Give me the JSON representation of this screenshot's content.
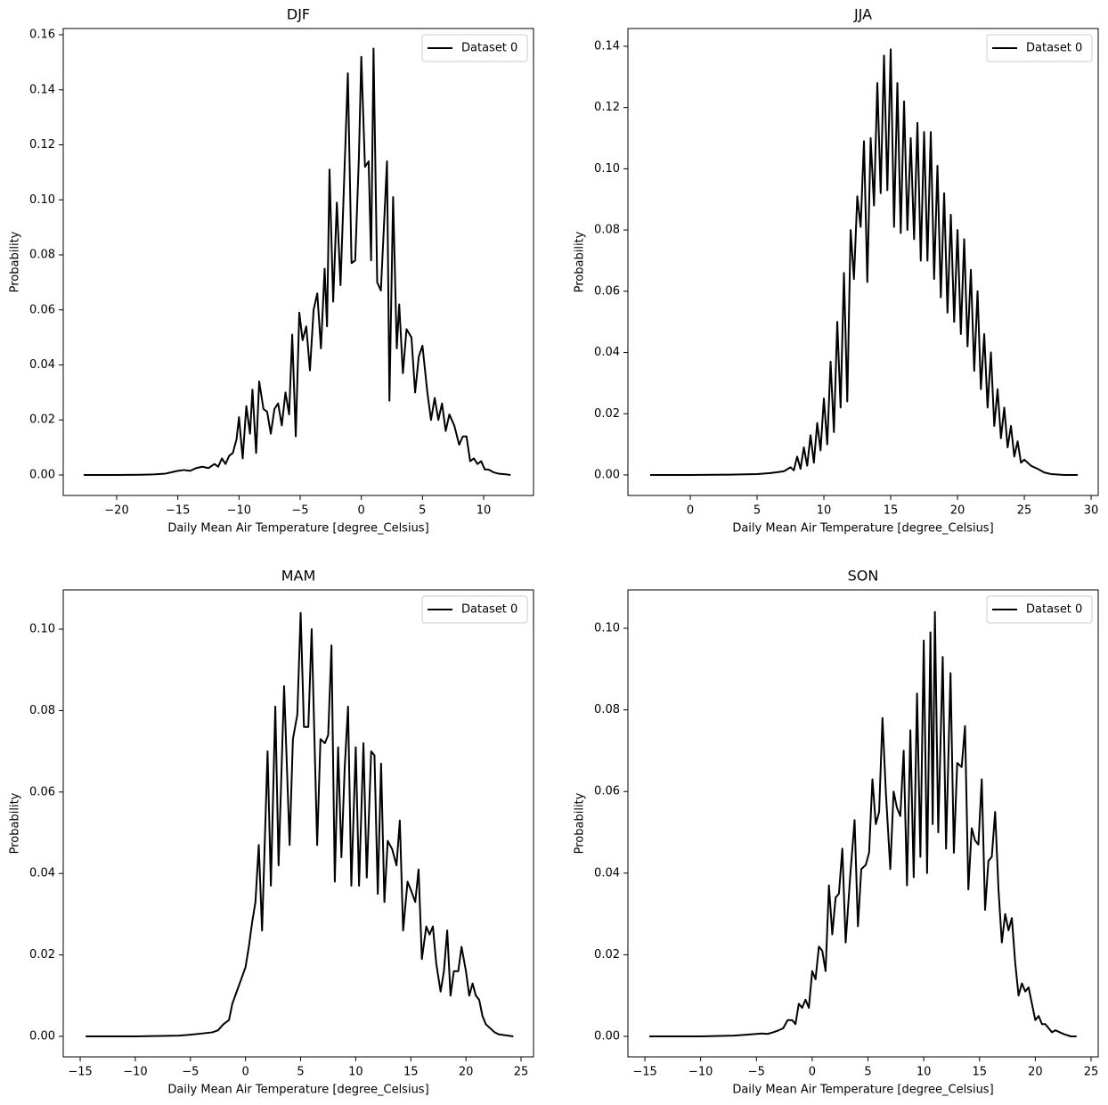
{
  "chart_data": [
    {
      "type": "line",
      "title": "DJF",
      "xlabel": "Daily Mean Air Temperature [degree_Celsius]",
      "ylabel": "Probability",
      "legend": "upper right",
      "x": [
        -22.7,
        -20,
        -18,
        -17,
        -16,
        -15.5,
        -15,
        -14.5,
        -14,
        -13.5,
        -13,
        -12.5,
        -12,
        -11.7,
        -11.4,
        -11.1,
        -10.8,
        -10.5,
        -10.2,
        -10.0,
        -9.7,
        -9.4,
        -9.1,
        -8.9,
        -8.6,
        -8.35,
        -8.0,
        -7.7,
        -7.4,
        -7.1,
        -6.8,
        -6.5,
        -6.2,
        -5.9,
        -5.65,
        -5.36,
        -5.07,
        -4.8,
        -4.5,
        -4.2,
        -3.9,
        -3.6,
        -3.3,
        -3.0,
        -2.8,
        -2.6,
        -2.3,
        -2.0,
        -1.7,
        -1.1,
        -0.8,
        -0.5,
        -0.2,
        0.0,
        0.3,
        0.6,
        0.8,
        1.0,
        1.3,
        1.6,
        1.9,
        2.1,
        2.3,
        2.6,
        2.9,
        3.1,
        3.4,
        3.7,
        4.1,
        4.4,
        4.7,
        5.0,
        5.4,
        5.7,
        6.0,
        6.3,
        6.6,
        6.9,
        7.2,
        7.6,
        8.0,
        8.3,
        8.6,
        8.9,
        9.2,
        9.5,
        9.8,
        10.1,
        10.4,
        10.8,
        11.2,
        11.7,
        12.2
      ],
      "series": [
        {
          "name": "Dataset 0",
          "color": "#000000",
          "values": [
            0,
            0,
            0.0001,
            0.0002,
            0.0005,
            0.001,
            0.0015,
            0.0018,
            0.0015,
            0.0025,
            0.003,
            0.0025,
            0.004,
            0.003,
            0.006,
            0.004,
            0.007,
            0.008,
            0.013,
            0.021,
            0.006,
            0.025,
            0.015,
            0.031,
            0.008,
            0.034,
            0.024,
            0.023,
            0.015,
            0.024,
            0.026,
            0.018,
            0.03,
            0.022,
            0.051,
            0.014,
            0.059,
            0.049,
            0.054,
            0.038,
            0.06,
            0.066,
            0.046,
            0.075,
            0.054,
            0.111,
            0.063,
            0.099,
            0.069,
            0.146,
            0.077,
            0.078,
            0.115,
            0.152,
            0.112,
            0.114,
            0.078,
            0.155,
            0.07,
            0.067,
            0.095,
            0.114,
            0.027,
            0.101,
            0.046,
            0.062,
            0.037,
            0.053,
            0.05,
            0.03,
            0.043,
            0.047,
            0.03,
            0.02,
            0.028,
            0.02,
            0.026,
            0.016,
            0.022,
            0.018,
            0.011,
            0.014,
            0.014,
            0.005,
            0.006,
            0.004,
            0.005,
            0.002,
            0.002,
            0.001,
            0.0005,
            0.0003,
            0
          ]
        }
      ],
      "xlim": [
        -24.37,
        14.08
      ],
      "ylim": [
        -0.00745,
        0.16227
      ],
      "xticks": [
        {
          "value": -20,
          "label": "−20"
        },
        {
          "value": -15,
          "label": "−15"
        },
        {
          "value": -10,
          "label": "−10"
        },
        {
          "value": -5,
          "label": "−5"
        },
        0,
        5,
        10
      ],
      "yticks": [
        {
          "value": 0,
          "label": "0.00"
        },
        0.02,
        0.04,
        0.06,
        0.08,
        {
          "value": 0.1,
          "label": "0.10"
        },
        0.12,
        0.14,
        0.16
      ]
    },
    {
      "type": "line",
      "title": "JJA",
      "xlabel": "Daily Mean Air Temperature [degree_Celsius]",
      "ylabel": "Probability",
      "legend": "upper right",
      "x": [
        -3,
        0,
        3,
        5,
        6,
        7,
        7.5,
        7.75,
        8.0,
        8.25,
        8.5,
        8.75,
        9.0,
        9.25,
        9.5,
        9.75,
        10.0,
        10.25,
        10.5,
        10.75,
        11.0,
        11.25,
        11.5,
        11.75,
        12.0,
        12.25,
        12.5,
        12.75,
        13.0,
        13.25,
        13.5,
        13.75,
        14.0,
        14.25,
        14.5,
        14.75,
        15.0,
        15.25,
        15.5,
        15.75,
        16.0,
        16.25,
        16.5,
        16.75,
        17.0,
        17.25,
        17.5,
        17.75,
        18.0,
        18.25,
        18.5,
        18.75,
        19.0,
        19.25,
        19.5,
        19.75,
        20.0,
        20.25,
        20.5,
        20.75,
        21.0,
        21.25,
        21.5,
        21.75,
        22.0,
        22.25,
        22.5,
        22.75,
        23.0,
        23.25,
        23.5,
        23.75,
        24.0,
        24.25,
        24.5,
        24.75,
        25,
        25.5,
        26,
        26.5,
        27,
        28,
        29
      ],
      "series": [
        {
          "name": "Dataset 0",
          "color": "#000000",
          "values": [
            0,
            0,
            0.0001,
            0.0003,
            0.0006,
            0.0012,
            0.0025,
            0.0015,
            0.006,
            0.002,
            0.009,
            0.003,
            0.013,
            0.004,
            0.017,
            0.008,
            0.025,
            0.01,
            0.037,
            0.014,
            0.05,
            0.022,
            0.066,
            0.024,
            0.08,
            0.064,
            0.091,
            0.081,
            0.109,
            0.063,
            0.11,
            0.088,
            0.128,
            0.092,
            0.137,
            0.093,
            0.139,
            0.081,
            0.128,
            0.079,
            0.122,
            0.08,
            0.11,
            0.077,
            0.115,
            0.07,
            0.112,
            0.07,
            0.112,
            0.064,
            0.101,
            0.058,
            0.092,
            0.053,
            0.085,
            0.05,
            0.08,
            0.046,
            0.077,
            0.042,
            0.067,
            0.034,
            0.06,
            0.028,
            0.046,
            0.022,
            0.04,
            0.016,
            0.028,
            0.012,
            0.022,
            0.009,
            0.016,
            0.006,
            0.011,
            0.004,
            0.005,
            0.003,
            0.002,
            0.0008,
            0.0003,
            0,
            0
          ]
        }
      ],
      "xlim": [
        -4.667,
        30.53
      ],
      "ylim": [
        -0.0067,
        0.1458
      ],
      "xticks": [
        0,
        5,
        10,
        15,
        20,
        25,
        30
      ],
      "yticks": [
        {
          "value": 0,
          "label": "0.00"
        },
        0.02,
        0.04,
        0.06,
        0.08,
        {
          "value": 0.1,
          "label": "0.10"
        },
        0.12,
        0.14
      ]
    },
    {
      "type": "line",
      "title": "MAM",
      "xlabel": "Daily Mean Air Temperature [degree_Celsius]",
      "ylabel": "Probability",
      "legend": "upper right",
      "x": [
        -14.5,
        -10,
        -6,
        -5,
        -4,
        -3,
        -2.5,
        -2,
        -1.5,
        -1.2,
        -0.8,
        -0.4,
        0,
        0.3,
        0.6,
        0.9,
        1.2,
        1.5,
        2.0,
        2.3,
        2.7,
        3.0,
        3.5,
        4.0,
        4.3,
        4.7,
        5.0,
        5.3,
        5.7,
        6.0,
        6.5,
        6.8,
        7.2,
        7.5,
        7.8,
        8.1,
        8.4,
        8.7,
        9.0,
        9.3,
        9.6,
        10.0,
        10.3,
        10.7,
        11.0,
        11.4,
        11.7,
        12.0,
        12.3,
        12.6,
        12.9,
        13.3,
        13.7,
        14.0,
        14.3,
        14.7,
        15.0,
        15.4,
        15.7,
        16.0,
        16.4,
        16.7,
        17.0,
        17.3,
        17.7,
        18.0,
        18.3,
        18.6,
        18.9,
        19.3,
        19.6,
        20.0,
        20.3,
        20.6,
        20.9,
        21.2,
        21.5,
        21.8,
        22.2,
        22.6,
        23,
        24.3
      ],
      "series": [
        {
          "name": "Dataset 0",
          "color": "#000000",
          "values": [
            0,
            0,
            0.0002,
            0.0004,
            0.0007,
            0.001,
            0.0015,
            0.003,
            0.004,
            0.008,
            0.011,
            0.014,
            0.017,
            0.022,
            0.028,
            0.033,
            0.047,
            0.026,
            0.07,
            0.037,
            0.081,
            0.042,
            0.086,
            0.047,
            0.073,
            0.079,
            0.104,
            0.076,
            0.076,
            0.1,
            0.047,
            0.073,
            0.072,
            0.074,
            0.096,
            0.038,
            0.071,
            0.044,
            0.066,
            0.081,
            0.037,
            0.071,
            0.037,
            0.072,
            0.039,
            0.07,
            0.069,
            0.035,
            0.067,
            0.033,
            0.048,
            0.046,
            0.042,
            0.053,
            0.026,
            0.038,
            0.036,
            0.033,
            0.041,
            0.019,
            0.027,
            0.025,
            0.027,
            0.018,
            0.011,
            0.016,
            0.026,
            0.01,
            0.016,
            0.016,
            0.022,
            0.016,
            0.01,
            0.013,
            0.01,
            0.009,
            0.005,
            0.003,
            0.002,
            0.001,
            0.0005,
            0
          ]
        }
      ],
      "xlim": [
        -16.54,
        26.13
      ],
      "ylim": [
        -0.00503,
        0.10963
      ],
      "xticks": [
        {
          "value": -15,
          "label": "−15"
        },
        {
          "value": -10,
          "label": "−10"
        },
        {
          "value": -5,
          "label": "−5"
        },
        0,
        5,
        10,
        15,
        20,
        25
      ],
      "yticks": [
        {
          "value": 0,
          "label": "0.00"
        },
        0.02,
        0.04,
        0.06,
        0.08,
        {
          "value": 0.1,
          "label": "0.10"
        }
      ]
    },
    {
      "type": "line",
      "title": "SON",
      "xlabel": "Daily Mean Air Temperature [degree_Celsius]",
      "ylabel": "Probability",
      "legend": "upper right",
      "x": [
        -14.6,
        -10,
        -7,
        -5.5,
        -4.5,
        -4,
        -3.5,
        -3,
        -2.6,
        -2.2,
        -1.8,
        -1.5,
        -1.2,
        -0.9,
        -0.6,
        -0.3,
        0,
        0.3,
        0.6,
        0.9,
        1.2,
        1.5,
        1.8,
        2.1,
        2.4,
        2.7,
        3.0,
        3.4,
        3.8,
        4.1,
        4.4,
        4.8,
        5.1,
        5.4,
        5.7,
        6.0,
        6.3,
        6.6,
        7.0,
        7.3,
        7.6,
        7.9,
        8.2,
        8.5,
        8.8,
        9.1,
        9.4,
        9.7,
        10.0,
        10.3,
        10.6,
        10.8,
        11.0,
        11.3,
        11.7,
        12.0,
        12.4,
        12.7,
        13.0,
        13.4,
        13.7,
        14.0,
        14.3,
        14.6,
        14.9,
        15.2,
        15.5,
        15.8,
        16.1,
        16.4,
        16.7,
        17.0,
        17.3,
        17.6,
        17.9,
        18.2,
        18.5,
        18.8,
        19.1,
        19.4,
        19.7,
        20.0,
        20.3,
        20.6,
        20.9,
        21.2,
        21.5,
        21.8,
        22.2,
        22.6,
        23.2,
        23.7
      ],
      "series": [
        {
          "name": "Dataset 0",
          "color": "#000000",
          "values": [
            0,
            0,
            0.0002,
            0.0005,
            0.0007,
            0.0006,
            0.001,
            0.0015,
            0.002,
            0.004,
            0.004,
            0.003,
            0.008,
            0.007,
            0.009,
            0.007,
            0.016,
            0.014,
            0.022,
            0.021,
            0.016,
            0.037,
            0.025,
            0.034,
            0.035,
            0.046,
            0.023,
            0.039,
            0.053,
            0.027,
            0.041,
            0.042,
            0.045,
            0.063,
            0.052,
            0.055,
            0.078,
            0.06,
            0.041,
            0.06,
            0.056,
            0.054,
            0.07,
            0.037,
            0.075,
            0.039,
            0.084,
            0.044,
            0.097,
            0.04,
            0.099,
            0.052,
            0.104,
            0.05,
            0.093,
            0.046,
            0.089,
            0.045,
            0.067,
            0.066,
            0.076,
            0.036,
            0.051,
            0.048,
            0.047,
            0.063,
            0.031,
            0.043,
            0.044,
            0.055,
            0.036,
            0.023,
            0.03,
            0.026,
            0.029,
            0.018,
            0.01,
            0.013,
            0.011,
            0.012,
            0.008,
            0.004,
            0.005,
            0.003,
            0.003,
            0.002,
            0.001,
            0.0015,
            0.001,
            0.0005,
            0,
            0
          ]
        }
      ],
      "xlim": [
        -16.52,
        25.64
      ],
      "ylim": [
        -0.00502,
        0.10939
      ],
      "xticks": [
        {
          "value": -15,
          "label": "−15"
        },
        {
          "value": -10,
          "label": "−10"
        },
        {
          "value": -5,
          "label": "−5"
        },
        0,
        5,
        10,
        15,
        20,
        25
      ],
      "yticks": [
        {
          "value": 0,
          "label": "0.00"
        },
        0.02,
        0.04,
        0.06,
        0.08,
        {
          "value": 0.1,
          "label": "0.10"
        }
      ]
    }
  ]
}
